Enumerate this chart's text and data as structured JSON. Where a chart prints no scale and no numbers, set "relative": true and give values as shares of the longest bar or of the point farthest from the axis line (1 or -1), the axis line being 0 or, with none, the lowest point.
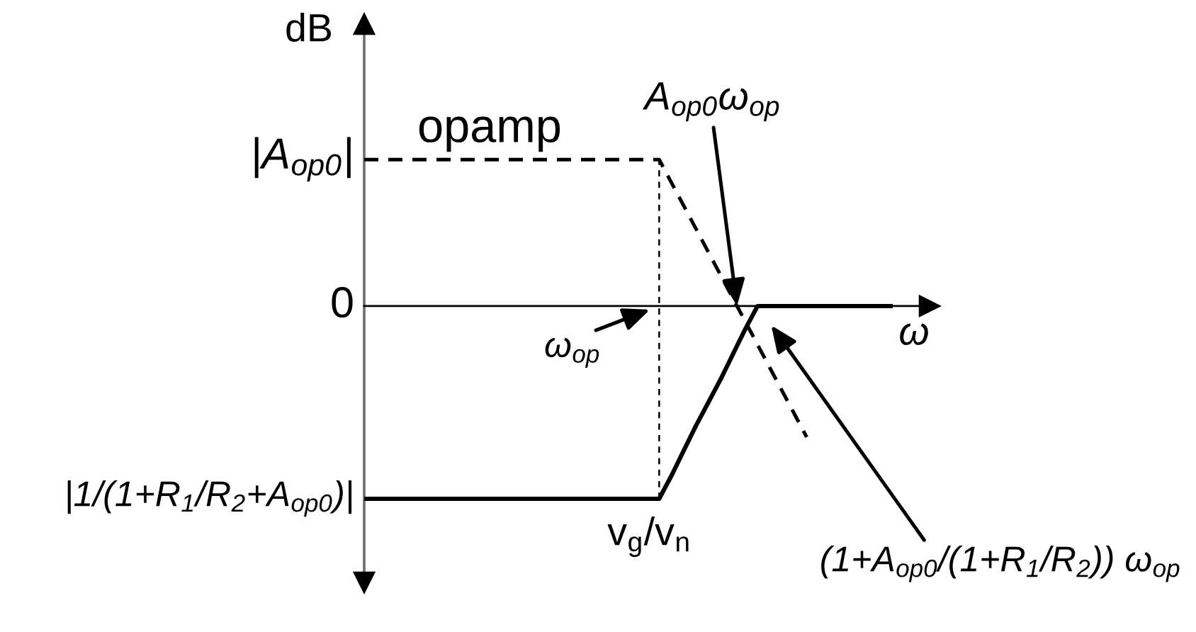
{
  "chart_data": {
    "type": "line",
    "relative": true,
    "xlabel": "ω",
    "ylabel": "dB",
    "categories": [
      null,
      null,
      null,
      null,
      null,
      null,
      null,
      null,
      null,
      null,
      null,
      null,
      null,
      null,
      null,
      null,
      null,
      null,
      null,
      null,
      null,
      null,
      null,
      null,
      null,
      null,
      null,
      null,
      null,
      null,
      null,
      null,
      null,
      null,
      null,
      null,
      null,
      null,
      null,
      null,
      null,
      null,
      null,
      null
    ],
    "series": [
      {
        "name": "opamp",
        "color": "#000000",
        "line_style": "dashed",
        "values": [
          0.76,
          0.76,
          0.76,
          0.76,
          0.76,
          0.76,
          0.76,
          0.76,
          0.76,
          0.76,
          0.76,
          0.76,
          0.76,
          0.76,
          0.76,
          0.76,
          0.76,
          0.76,
          0.76,
          0.76,
          0.76,
          0.76,
          0.76,
          0.76,
          0.76,
          0.64,
          0.52,
          0.4,
          0.28,
          0.16,
          0.04,
          -0.08,
          -0.2,
          -0.32,
          -0.44,
          -0.56,
          -0.68,
          null,
          null,
          null,
          null,
          null,
          null,
          null
        ]
      },
      {
        "name": "v$_{g}$/v$_{n}$",
        "color": "#000000",
        "line_style": "solid",
        "values": [
          -1,
          -1,
          -1,
          -1,
          -1,
          -1,
          -1,
          -1,
          -1,
          -1,
          -1,
          -1,
          -1,
          -1,
          -1,
          -1,
          -1,
          -1,
          -1,
          -1,
          -1,
          -1,
          -1,
          -1,
          -1,
          -0.88,
          -0.75,
          -0.62,
          -0.5,
          -0.38,
          -0.25,
          -0.12,
          0,
          0,
          0,
          0,
          0,
          0,
          0,
          0,
          0,
          0,
          0,
          0
        ]
      }
    ],
    "annotations": [
      "|A$_{op0}$|",
      "0",
      "|1/(1+R$_{1}$/R$_{2}$+A$_{op0}$)|",
      "A$_{op0}$ω$_{op}$",
      "ω$_{op}$",
      "(1+A$_{op0}$/(1+R$_{1}$/R$_{2}$)) ω$_{op}$"
    ]
  }
}
